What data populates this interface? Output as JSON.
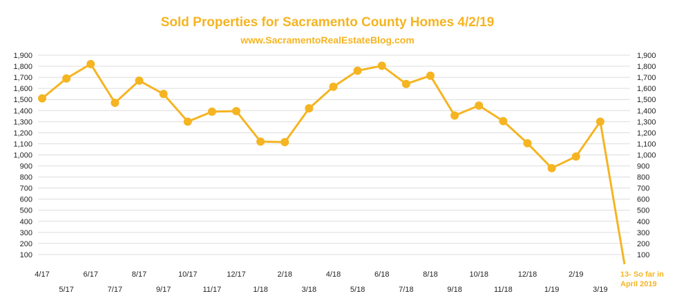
{
  "chart_data": {
    "type": "line",
    "title": "Sold Properties for Sacramento County Homes 4/2/19",
    "subtitle": "www.SacramentoRealEstateBlog.com",
    "ylim": [
      0,
      1900
    ],
    "yticks": [
      100,
      200,
      300,
      400,
      500,
      600,
      700,
      800,
      900,
      1000,
      1100,
      1200,
      1300,
      1400,
      1500,
      1600,
      1700,
      1800,
      1900
    ],
    "ytick_labels": [
      "100",
      "200",
      "300",
      "400",
      "500",
      "600",
      "700",
      "800",
      "900",
      "1,000",
      "1,100",
      "1,200",
      "1,300",
      "1,400",
      "1,500",
      "1,600",
      "1,700",
      "1,800",
      "1,900"
    ],
    "grid": true,
    "categories": [
      "4/17",
      "5/17",
      "6/17",
      "7/17",
      "8/17",
      "9/17",
      "10/17",
      "11/17",
      "12/17",
      "1/18",
      "2/18",
      "3/18",
      "4/18",
      "5/18",
      "6/18",
      "7/18",
      "8/18",
      "9/18",
      "10/18",
      "11/18",
      "12/18",
      "1/19",
      "2/19",
      "3/19",
      "4/19"
    ],
    "category_labels": [
      "4/17",
      "5/17",
      "6/17",
      "7/17",
      "8/17",
      "9/17",
      "10/17",
      "11/17",
      "12/17",
      "1/18",
      "2/18",
      "3/18",
      "4/18",
      "5/18",
      "6/18",
      "7/18",
      "8/18",
      "9/18",
      "10/18",
      "11/18",
      "12/18",
      "1/19",
      "2/19",
      "3/19",
      ""
    ],
    "series": [
      {
        "values": [
          1510,
          1690,
          1820,
          1470,
          1670,
          1550,
          1300,
          1390,
          1395,
          1120,
          1115,
          1420,
          1615,
          1760,
          1805,
          1640,
          1715,
          1355,
          1445,
          1305,
          1105,
          880,
          985,
          1300,
          13
        ]
      }
    ],
    "annotation": {
      "line1": "13- So far in",
      "line2": "April 2019"
    },
    "colors": {
      "series": "#f5b422",
      "title": "#f5b422",
      "grid": "#dcdcdc"
    }
  }
}
